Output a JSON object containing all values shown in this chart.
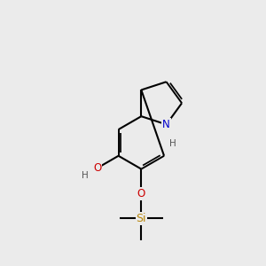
{
  "background_color": "#ebebeb",
  "bond_lw": 1.5,
  "atom_colors": {
    "O": "#cc0000",
    "N": "#0000cc",
    "Si": "#b8860b",
    "C": "#000000",
    "H": "#555555"
  },
  "font_size": 8.5,
  "fig_size": [
    3.0,
    3.0
  ],
  "dpi": 100,
  "xlim": [
    0,
    10
  ],
  "ylim": [
    0,
    10
  ]
}
